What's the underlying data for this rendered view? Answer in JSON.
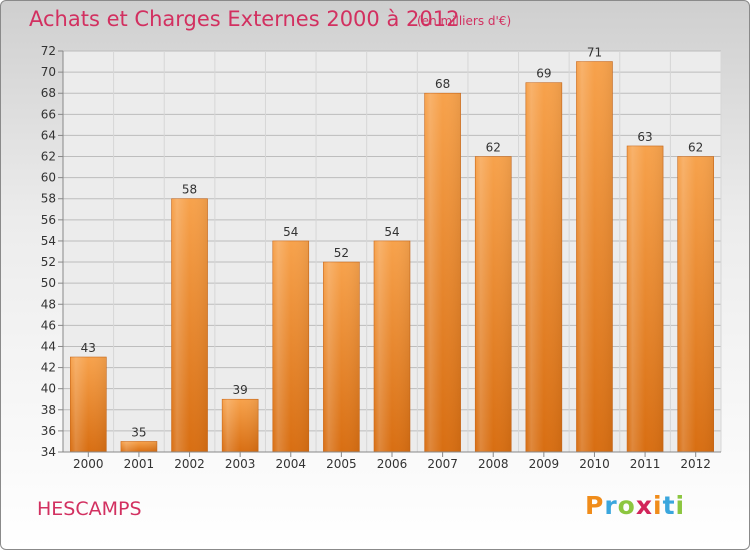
{
  "chart_data": {
    "type": "bar",
    "title": "Achats et Charges Externes 2000 à 2012",
    "subtitle": "(en milliers d'€)",
    "categories": [
      "2000",
      "2001",
      "2002",
      "2003",
      "2004",
      "2005",
      "2006",
      "2007",
      "2008",
      "2009",
      "2010",
      "2011",
      "2012"
    ],
    "values": [
      43,
      35,
      58,
      39,
      54,
      52,
      54,
      68,
      62,
      69,
      71,
      63,
      62
    ],
    "ylim": [
      34,
      72
    ],
    "yticks": [
      34,
      36,
      38,
      40,
      42,
      44,
      46,
      48,
      50,
      52,
      54,
      56,
      58,
      60,
      62,
      64,
      66,
      68,
      70,
      72
    ],
    "grid": true,
    "bar_color": "#f0922e"
  },
  "commune": "HESCAMPS",
  "logo": {
    "text": "Proxiti",
    "letters": [
      {
        "ch": "P",
        "color": "#f08c1a"
      },
      {
        "ch": "r",
        "color": "#3aa6dd"
      },
      {
        "ch": "o",
        "color": "#8cc63f"
      },
      {
        "ch": "x",
        "color": "#d2245a"
      },
      {
        "ch": "i",
        "color": "#f08c1a"
      },
      {
        "ch": "t",
        "color": "#3aa6dd"
      },
      {
        "ch": "i",
        "color": "#8cc63f"
      }
    ]
  }
}
